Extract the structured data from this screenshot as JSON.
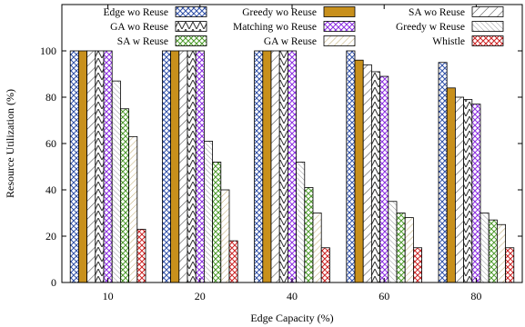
{
  "chart_data": {
    "type": "bar",
    "title": "",
    "xlabel": "Edge Capacity (%)",
    "ylabel": "Resource Utilization (%)",
    "categories": [
      "10",
      "20",
      "40",
      "60",
      "80"
    ],
    "ylim": [
      0,
      120
    ],
    "yticks": [
      0,
      20,
      40,
      60,
      80,
      100
    ],
    "grid": false,
    "legend_position": "top",
    "series": [
      {
        "name": "Edge wo Reuse",
        "values": [
          100,
          100,
          100,
          100,
          95
        ],
        "pattern": "crosshatch",
        "color": "#3050a8"
      },
      {
        "name": "Greedy wo Reuse",
        "values": [
          100,
          100,
          100,
          96,
          84
        ],
        "pattern": "solid",
        "color": "#c8901c"
      },
      {
        "name": "SA wo Reuse",
        "values": [
          100,
          100,
          100,
          94,
          80
        ],
        "pattern": "diagonal",
        "color": "#555555"
      },
      {
        "name": "GA wo Reuse",
        "values": [
          100,
          100,
          100,
          91,
          79
        ],
        "pattern": "herringbone",
        "color": "#333333"
      },
      {
        "name": "Matching wo Reuse",
        "values": [
          100,
          100,
          100,
          89,
          77
        ],
        "pattern": "crosshatch",
        "color": "#8a2be2"
      },
      {
        "name": "Greedy w Reuse",
        "values": [
          87,
          61,
          52,
          35,
          30
        ],
        "pattern": "diagonal-dense",
        "color": "#9a9aa0"
      },
      {
        "name": "SA w Reuse",
        "values": [
          75,
          52,
          41,
          30,
          27
        ],
        "pattern": "crosshatch",
        "color": "#4c9a2a"
      },
      {
        "name": "GA w Reuse",
        "values": [
          63,
          40,
          30,
          28,
          25
        ],
        "pattern": "diagonal-light",
        "color": "#b8a060"
      },
      {
        "name": "Whistle",
        "values": [
          23,
          18,
          15,
          15,
          15
        ],
        "pattern": "crosshatch",
        "color": "#cc2222"
      }
    ]
  }
}
